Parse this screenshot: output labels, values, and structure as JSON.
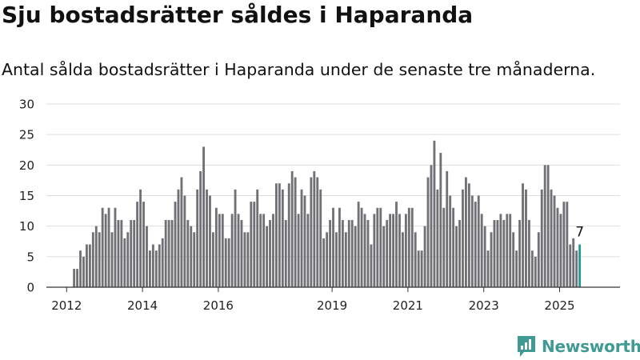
{
  "title": "Sju bostadsrätter såldes i Haparanda",
  "subtitle": "Antal sålda bostadsrätter i Haparanda under de senaste tre månaderna.",
  "brand": "Newsworthy",
  "colors": {
    "bar": "#707076",
    "highlight": "#1f9a94",
    "grid": "#dddddd",
    "axis": "#333333",
    "brand": "#3f9a93"
  },
  "chart_data": {
    "type": "bar",
    "title": "Sju bostadsrätter såldes i Haparanda",
    "subtitle": "Antal sålda bostadsrätter i Haparanda under de senaste tre månaderna.",
    "xlabel": "",
    "ylabel": "",
    "ylim": [
      0,
      30
    ],
    "yticks": [
      0,
      5,
      10,
      15,
      20,
      25,
      30
    ],
    "xticks": [
      "2012",
      "2014",
      "2016",
      "2019",
      "2021",
      "2023",
      "2025"
    ],
    "grid": true,
    "legend": "none",
    "start": "2012-03",
    "frequency": "monthly (rolling three-month total)",
    "values": [
      3,
      3,
      6,
      5,
      7,
      7,
      9,
      10,
      9,
      13,
      12,
      13,
      9,
      13,
      11,
      11,
      8,
      9,
      11,
      11,
      14,
      16,
      14,
      10,
      6,
      7,
      6,
      7,
      8,
      11,
      11,
      11,
      14,
      16,
      18,
      15,
      11,
      10,
      9,
      16,
      19,
      23,
      16,
      15,
      9,
      13,
      12,
      12,
      8,
      8,
      12,
      16,
      12,
      11,
      9,
      9,
      14,
      14,
      16,
      12,
      12,
      10,
      11,
      12,
      17,
      17,
      16,
      11,
      17,
      19,
      18,
      12,
      16,
      15,
      12,
      18,
      19,
      18,
      16,
      8,
      9,
      11,
      13,
      9,
      13,
      11,
      9,
      11,
      11,
      10,
      14,
      13,
      12,
      11,
      7,
      12,
      13,
      13,
      10,
      11,
      12,
      12,
      14,
      12,
      9,
      12,
      13,
      13,
      9,
      6,
      6,
      10,
      18,
      20,
      24,
      16,
      22,
      13,
      19,
      15,
      13,
      10,
      11,
      16,
      18,
      17,
      15,
      14,
      15,
      12,
      10,
      6,
      9,
      11,
      11,
      12,
      11,
      12,
      12,
      9,
      6,
      11,
      17,
      16,
      11,
      6,
      5,
      9,
      16,
      20,
      20,
      16,
      15,
      13,
      12,
      14,
      14,
      7,
      8,
      6,
      7
    ],
    "highlight_last": true,
    "last_value_label": "7"
  }
}
